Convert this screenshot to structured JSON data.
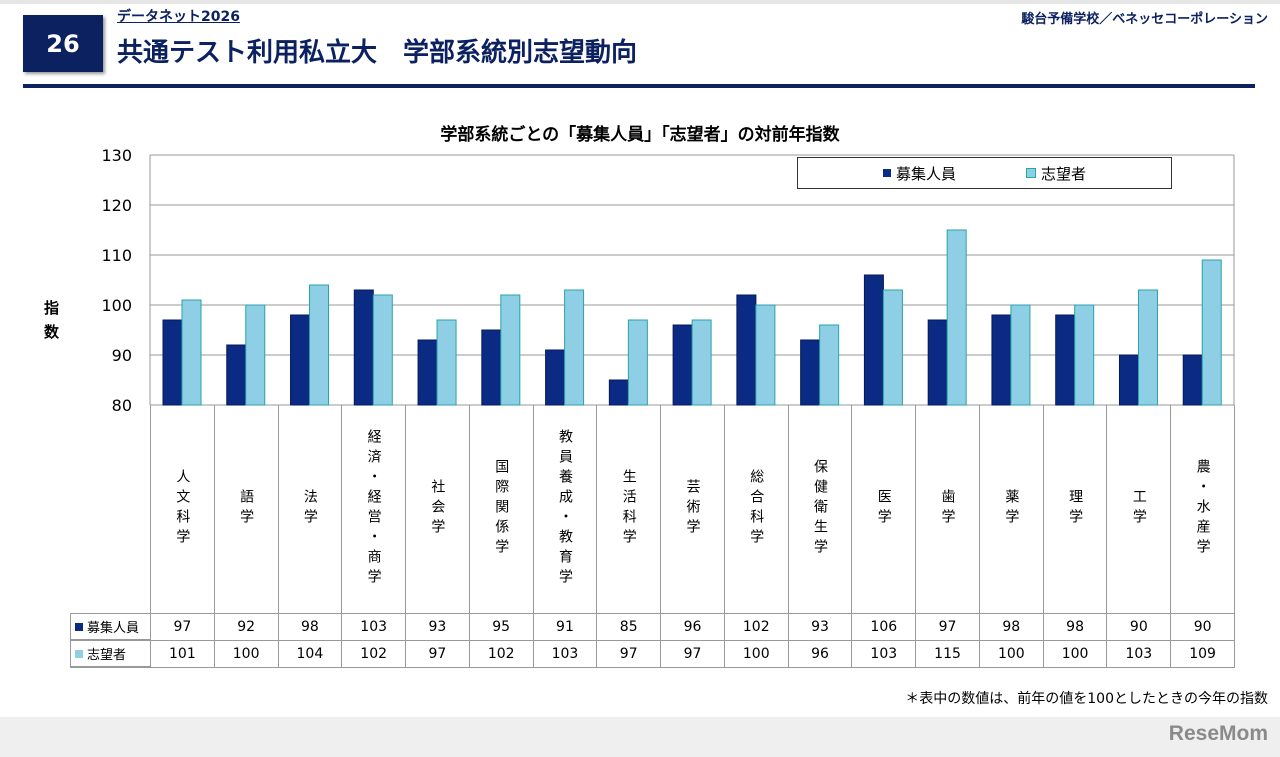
{
  "header": {
    "slide_number": "26",
    "subtitle": "データネット2026",
    "title": "共通テスト利用私立大　学部系統別志望動向",
    "organization": "駿台予備学校／ベネッセコーポレーション"
  },
  "footnote": "＊表中の数値は、前年の値を100としたときの今年の指数",
  "logo": "ReseMom",
  "chart_data": {
    "type": "bar",
    "title": "学部系統ごとの「募集人員」「志望者」の対前年指数",
    "ylabel": "指数",
    "ylim": [
      80,
      130
    ],
    "yticks": [
      "80",
      "90",
      "100",
      "110",
      "120",
      "130"
    ],
    "grid": true,
    "legend_position": "top-right",
    "categories": [
      "人文科学",
      "語学",
      "法学",
      "経済・経営・商学",
      "社会学",
      "国際関係学",
      "教員養成・教育学",
      "生活科学",
      "芸術学",
      "総合科学",
      "保健衛生学",
      "医学",
      "歯学",
      "薬学",
      "理学",
      "工学",
      "農・水産学"
    ],
    "series": [
      {
        "name": "募集人員",
        "color": "#0b2a84",
        "values": [
          97,
          92,
          98,
          103,
          93,
          95,
          91,
          85,
          96,
          102,
          93,
          106,
          97,
          98,
          98,
          90,
          90
        ]
      },
      {
        "name": "志望者",
        "color": "#8ecfe6",
        "values": [
          101,
          100,
          104,
          102,
          97,
          102,
          103,
          97,
          97,
          100,
          96,
          103,
          115,
          100,
          100,
          103,
          109
        ]
      }
    ]
  }
}
